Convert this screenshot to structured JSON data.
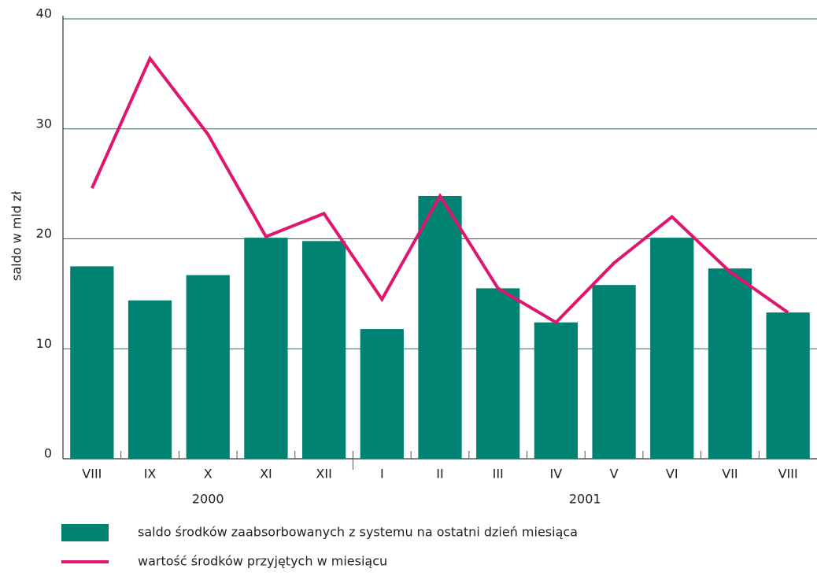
{
  "chart_data": {
    "type": "bar_line",
    "ylabel": "saldo w mld zł",
    "categories": [
      "VIII",
      "IX",
      "X",
      "XI",
      "XII",
      "I",
      "II",
      "III",
      "IV",
      "V",
      "VI",
      "VII",
      "VIII"
    ],
    "groups": [
      {
        "label": "2000",
        "count": 5
      },
      {
        "label": "2001",
        "count": 8
      }
    ],
    "series": [
      {
        "name": "saldo środków zaabsorbowanych z systemu na ostatni dzień miesiąca",
        "type": "bar",
        "color": "#008272",
        "values": [
          17.5,
          14.4,
          16.7,
          20.1,
          19.8,
          11.8,
          23.9,
          15.5,
          12.4,
          15.8,
          20.1,
          17.3,
          13.3
        ]
      },
      {
        "name": "wartość środków przyjętych w miesiącu",
        "type": "line",
        "color": "#e0156f",
        "values": [
          24.6,
          36.4,
          29.5,
          20.2,
          22.3,
          14.5,
          23.9,
          15.5,
          12.4,
          17.8,
          22.0,
          17.0,
          13.3
        ]
      }
    ],
    "ylim": [
      0,
      40
    ],
    "yticks": [
      0,
      10,
      20,
      30,
      40
    ],
    "grid": true,
    "legend": "bottom"
  }
}
